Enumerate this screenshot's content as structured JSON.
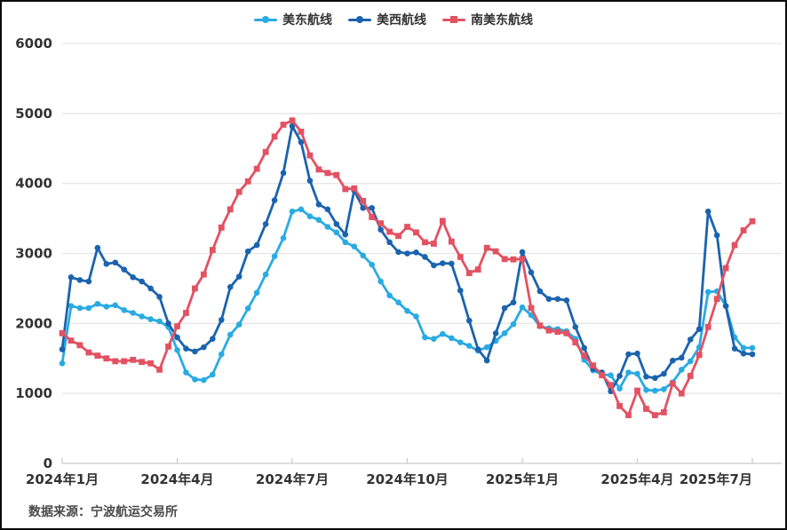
{
  "source_note": "数据来源：宁波航运交易所",
  "colors": {
    "us_east": "#29ABE2",
    "us_west": "#1B63AE",
    "south_america_east": "#E25263",
    "grid": "#E6E6E6",
    "axis_line": "#CCCCCC",
    "axis_text": "#333333"
  },
  "chart_data": {
    "type": "line",
    "title": "",
    "xlabel": "",
    "ylabel": "",
    "ylim": [
      0,
      6000
    ],
    "y_ticks": [
      0,
      1000,
      2000,
      3000,
      4000,
      5000,
      6000
    ],
    "x_tick_labels": [
      "2024年1月",
      "2024年4月",
      "2024年7月",
      "2024年10月",
      "2025年1月",
      "2025年4月",
      "2025年7月"
    ],
    "grid": true,
    "legend_position": "top",
    "x_note": "weekly points, Jan 2024 - early Jul 2025 (79 points per series)",
    "series": [
      {
        "key": "us_east",
        "name": "美东航线",
        "marker": "circle",
        "values": [
          1430,
          2250,
          2220,
          2220,
          2280,
          2240,
          2260,
          2190,
          2150,
          2100,
          2060,
          2030,
          1950,
          1620,
          1300,
          1200,
          1190,
          1270,
          1560,
          1840,
          1985,
          2215,
          2440,
          2700,
          2960,
          3220,
          3600,
          3630,
          3530,
          3480,
          3380,
          3300,
          3160,
          3100,
          2970,
          2840,
          2600,
          2400,
          2300,
          2180,
          2100,
          1800,
          1780,
          1850,
          1790,
          1730,
          1680,
          1610,
          1660,
          1750,
          1860,
          1990,
          2230,
          2120,
          1960,
          1930,
          1920,
          1890,
          1780,
          1480,
          1330,
          1270,
          1260,
          1070,
          1300,
          1280,
          1050,
          1040,
          1060,
          1160,
          1340,
          1460,
          1660,
          2450,
          2460,
          2250,
          1800,
          1650,
          1650
        ]
      },
      {
        "key": "us_west",
        "name": "美西航线",
        "marker": "circle",
        "values": [
          1630,
          2660,
          2620,
          2600,
          3080,
          2850,
          2870,
          2770,
          2660,
          2600,
          2500,
          2380,
          2000,
          1800,
          1640,
          1600,
          1660,
          1780,
          2050,
          2520,
          2670,
          3030,
          3120,
          3420,
          3760,
          4150,
          4820,
          4590,
          4040,
          3700,
          3630,
          3420,
          3270,
          3900,
          3650,
          3650,
          3340,
          3160,
          3020,
          3000,
          3015,
          2950,
          2830,
          2860,
          2855,
          2470,
          2040,
          1630,
          1470,
          1860,
          2220,
          2300,
          3020,
          2730,
          2460,
          2350,
          2350,
          2330,
          1950,
          1650,
          1350,
          1300,
          1030,
          1250,
          1560,
          1570,
          1240,
          1220,
          1280,
          1470,
          1510,
          1770,
          1920,
          3600,
          3260,
          2250,
          1640,
          1570,
          1560
        ]
      },
      {
        "key": "south_america_east",
        "name": "南美东航线",
        "marker": "square",
        "values": [
          1860,
          1755,
          1690,
          1585,
          1540,
          1500,
          1460,
          1460,
          1480,
          1450,
          1430,
          1340,
          1670,
          1960,
          2150,
          2500,
          2700,
          3050,
          3370,
          3630,
          3880,
          4030,
          4210,
          4450,
          4670,
          4840,
          4900,
          4740,
          4400,
          4200,
          4150,
          4120,
          3920,
          3930,
          3750,
          3520,
          3430,
          3310,
          3250,
          3380,
          3300,
          3160,
          3140,
          3465,
          3170,
          2950,
          2720,
          2770,
          3080,
          3030,
          2920,
          2915,
          2920,
          2220,
          1970,
          1900,
          1880,
          1860,
          1730,
          1540,
          1400,
          1260,
          1120,
          820,
          690,
          1040,
          780,
          690,
          730,
          1140,
          1000,
          1250,
          1550,
          1950,
          2350,
          2790,
          3120,
          3330,
          3460
        ]
      }
    ]
  }
}
